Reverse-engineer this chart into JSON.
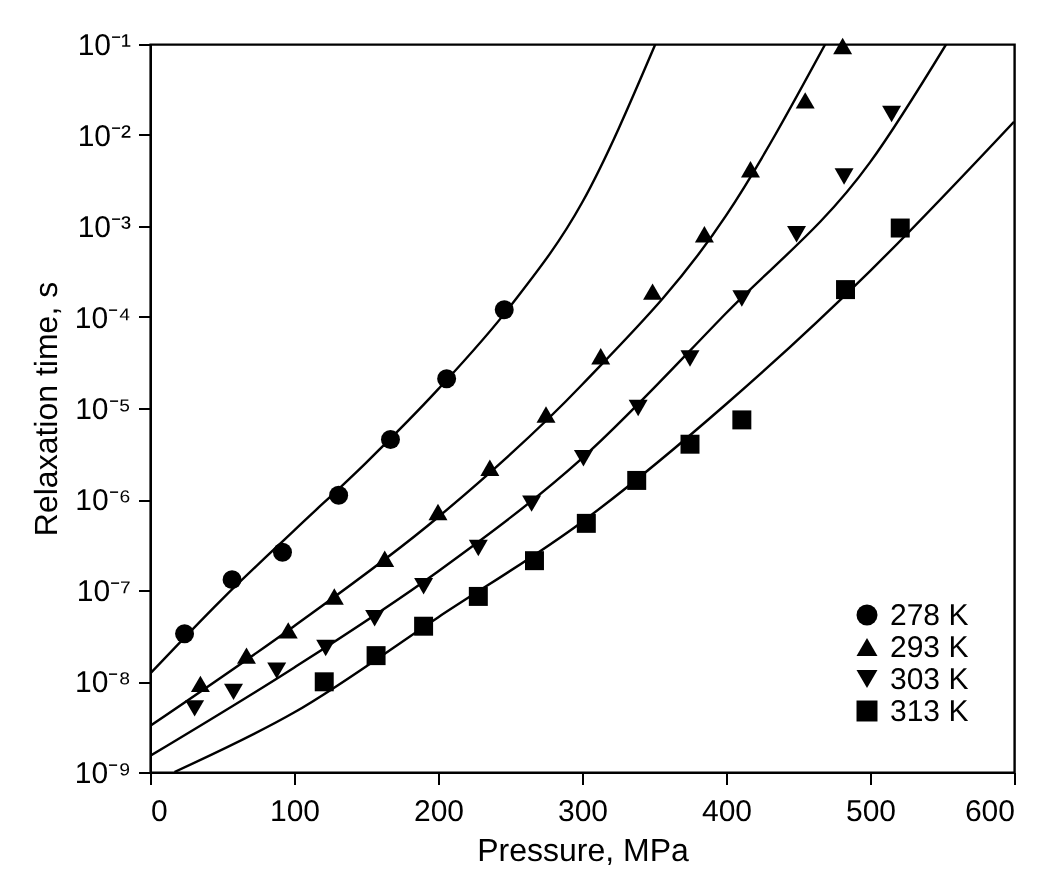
{
  "chart_data": {
    "type": "scatter",
    "xlabel": "Pressure, MPa",
    "ylabel": "Relaxation time, s",
    "log": "y",
    "grid": false,
    "legend": "bottom right",
    "xlim": [
      0,
      600
    ],
    "xticks": [
      0,
      100,
      200,
      300,
      400,
      500,
      600
    ],
    "ylim": [
      1e-09,
      0.1
    ],
    "yticks": [
      {
        "value": 1e-09,
        "label": "10⁻⁹"
      },
      {
        "value": 1e-08,
        "label": "10⁻⁸"
      },
      {
        "value": 1e-07,
        "label": "10⁻⁷"
      },
      {
        "value": 1e-06,
        "label": "10⁻⁶"
      },
      {
        "value": 1e-05,
        "label": "10⁻⁵"
      },
      {
        "value": 0.0001,
        "label": "10⁻⁴"
      },
      {
        "value": 0.001,
        "label": "10⁻³"
      },
      {
        "value": 0.01,
        "label": "10⁻²"
      },
      {
        "value": 0.1,
        "label": "10⁻¹"
      }
    ],
    "series": [
      {
        "name": "278 K",
        "marker": "circle",
        "color": "#000000",
        "x": [
          24,
          57,
          92,
          131,
          167,
          206,
          246
        ],
        "values": [
          3.3e-08,
          1.3e-07,
          2.6e-07,
          1.1e-06,
          4.5e-06,
          2.1e-05,
          0.00012
        ]
      },
      {
        "name": "293 K",
        "marker": "triangle",
        "color": "#000000",
        "x": [
          35,
          67,
          96,
          128,
          163,
          200,
          236,
          275,
          313,
          349,
          385,
          417,
          455,
          481
        ],
        "values": [
          9.3e-09,
          1.9e-08,
          3.6e-08,
          8.5e-08,
          2.2e-07,
          7.2e-07,
          2.2e-06,
          8.5e-06,
          3.7e-05,
          0.00019,
          0.00081,
          0.0042,
          0.024,
          0.095
        ]
      },
      {
        "name": "303 K",
        "marker": "triangle-down",
        "color": "#000000",
        "x": [
          31,
          58,
          88,
          122,
          156,
          190,
          228,
          265,
          301,
          339,
          375,
          411,
          449,
          482,
          515
        ],
        "values": [
          5e-09,
          7.6e-09,
          1.3e-08,
          2.3e-08,
          4.9e-08,
          1.1e-07,
          2.9e-07,
          8.9e-07,
          2.8e-06,
          1e-05,
          3.5e-05,
          0.00016,
          0.00081,
          0.0035,
          0.017
        ]
      },
      {
        "name": "313 K",
        "marker": "square",
        "color": "#000000",
        "x": [
          121,
          157,
          190,
          228,
          267,
          303,
          338,
          375,
          411,
          483,
          521
        ],
        "values": [
          9.8e-09,
          1.9e-08,
          4e-08,
          8.5e-08,
          2.1e-07,
          5.4e-07,
          1.6e-06,
          4e-06,
          7.4e-06,
          0.0002,
          0.00095
        ]
      },
      {
        "type": "line",
        "color": "#000000",
        "x": [
          0,
          50,
          100,
          150,
          200,
          250,
          300,
          351
        ],
        "values": [
          1.2e-08,
          7.9e-08,
          4.5e-07,
          2.5e-06,
          1.6e-05,
          0.00013,
          0.0018,
          0.1
        ]
      },
      {
        "type": "line",
        "color": "#000000",
        "x": [
          0,
          100,
          200,
          300,
          400,
          469
        ],
        "values": [
          3.2e-09,
          4e-08,
          6.3e-07,
          1.8e-05,
          0.0013,
          0.1
        ]
      },
      {
        "type": "line",
        "color": "#000000",
        "x": [
          0,
          100,
          200,
          300,
          400,
          500,
          553
        ],
        "values": [
          1.5e-09,
          1.4e-08,
          1.6e-07,
          2.8e-06,
          0.00011,
          0.005,
          0.1
        ]
      },
      {
        "type": "line",
        "color": "#000000",
        "x": [
          17,
          100,
          200,
          300,
          400,
          500,
          600
        ],
        "values": [
          1e-09,
          4.5e-09,
          5e-08,
          5.6e-07,
          1.1e-05,
          0.00032,
          0.014
        ]
      }
    ]
  }
}
